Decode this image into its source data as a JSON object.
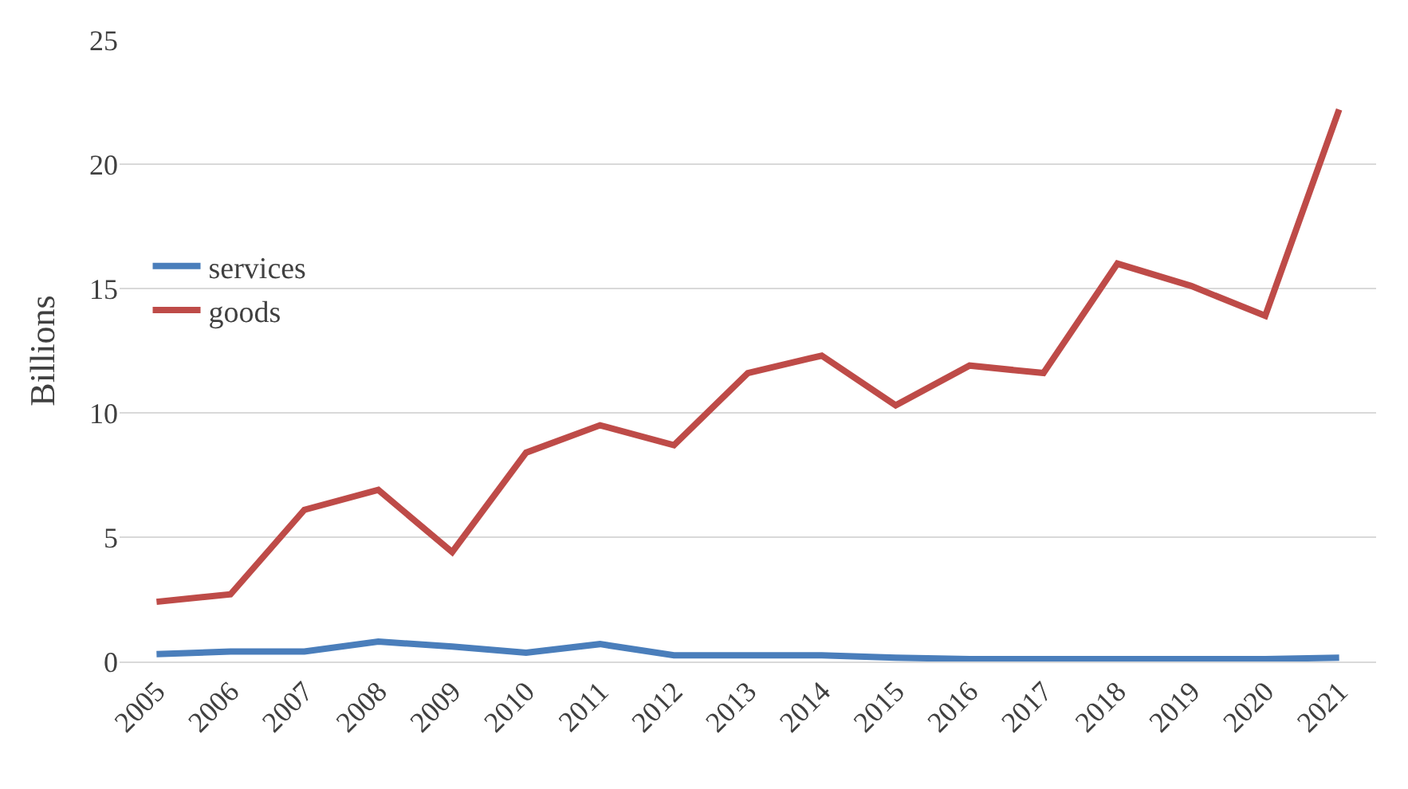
{
  "chart_data": {
    "type": "line",
    "ylabel": "Billions",
    "categories": [
      "2005",
      "2006",
      "2007",
      "2008",
      "2009",
      "2010",
      "2011",
      "2012",
      "2013",
      "2014",
      "2015",
      "2016",
      "2017",
      "2018",
      "2019",
      "2020",
      "2021"
    ],
    "series": [
      {
        "name": "services",
        "color": "#4a7ebb",
        "values": [
          0.3,
          0.4,
          0.4,
          0.8,
          0.6,
          0.35,
          0.7,
          0.25,
          0.25,
          0.25,
          0.15,
          0.1,
          0.1,
          0.1,
          0.1,
          0.1,
          0.15
        ]
      },
      {
        "name": "goods",
        "color": "#be4b48",
        "values": [
          2.4,
          2.7,
          6.1,
          6.9,
          4.4,
          8.4,
          9.5,
          8.7,
          11.6,
          12.3,
          10.3,
          11.9,
          11.6,
          16.0,
          15.1,
          13.9,
          22.2
        ]
      }
    ],
    "ylim": [
      0,
      25
    ],
    "yticks": [
      0,
      5,
      10,
      15,
      20,
      25
    ],
    "grid": "y",
    "legend": "left",
    "marker": "none",
    "line_style": "solid"
  }
}
